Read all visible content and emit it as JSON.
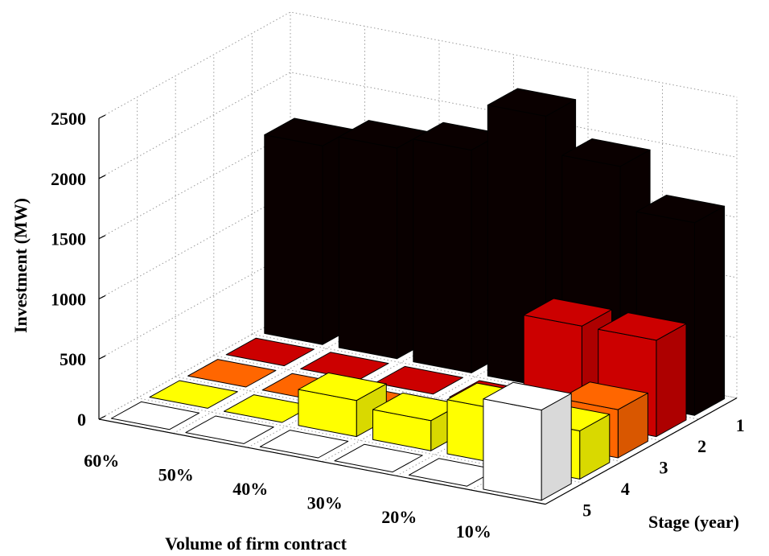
{
  "chart_data": {
    "type": "bar3d",
    "title": "",
    "zlabel": "Investment (MW)",
    "xlabel": "Volume of firm contract",
    "ylabel": "Stage (year)",
    "volume_categories": [
      "60%",
      "50%",
      "40%",
      "30%",
      "20%",
      "10%"
    ],
    "stage_categories": [
      "1",
      "2",
      "3",
      "4",
      "5"
    ],
    "zlim": [
      0,
      2500
    ],
    "zticks": [
      "0",
      "500",
      "1000",
      "1500",
      "2000",
      "2500"
    ],
    "grid": true,
    "series": [
      {
        "stage": "1",
        "color": "#0a0000",
        "values": [
          1650,
          1750,
          1850,
          2250,
          1950,
          1600
        ]
      },
      {
        "stage": "2",
        "color": "#cc0000",
        "values": [
          0,
          0,
          0,
          0,
          800,
          800
        ]
      },
      {
        "stage": "3",
        "color": "#ff6600",
        "values": [
          0,
          0,
          0,
          0,
          0,
          400
        ]
      },
      {
        "stage": "4",
        "color": "#ffff00",
        "values": [
          0,
          0,
          300,
          250,
          450,
          400
        ]
      },
      {
        "stage": "5",
        "color": "#ffffff",
        "values": [
          0,
          0,
          0,
          0,
          0,
          750
        ]
      }
    ]
  }
}
